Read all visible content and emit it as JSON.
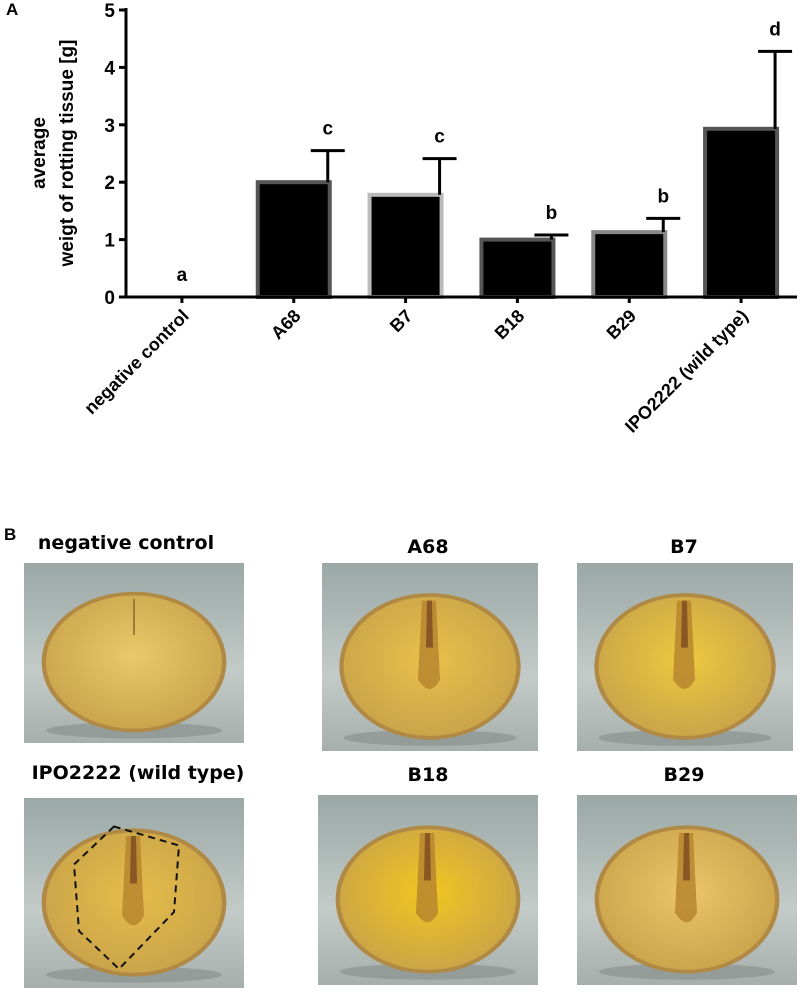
{
  "panel_a_letter": "A",
  "panel_b_letter": "B",
  "chart_data": {
    "type": "bar",
    "ylabel_line1": "average",
    "ylabel_line2": "weigt of rotting tissue [g]",
    "xlabel": "",
    "ylim": [
      0,
      5
    ],
    "yticks": [
      0,
      1,
      2,
      3,
      4,
      5
    ],
    "grid": false,
    "categories": [
      "negative control",
      "A68",
      "B7",
      "B18",
      "B29",
      "IPO2222 (wild type)"
    ],
    "values": [
      0,
      2.0,
      1.78,
      1.0,
      1.13,
      2.93
    ],
    "errors": [
      0,
      0.55,
      0.63,
      0.08,
      0.24,
      1.35
    ],
    "significance_letters": [
      "a",
      "c",
      "c",
      "b",
      "b",
      "d"
    ],
    "bar_color": "#000000",
    "bar_edge_colors": [
      "#000000",
      "#555555",
      "#bbbbbb",
      "#555555",
      "#888888",
      "#555555"
    ]
  },
  "photos": [
    {
      "title": "negative control",
      "flesh": "#e8c96a",
      "rot": false,
      "outline": false
    },
    {
      "title": "A68",
      "flesh": "#e9c04a",
      "rot": true,
      "outline": false
    },
    {
      "title": "B7",
      "flesh": "#ecc93e",
      "rot": true,
      "outline": false
    },
    {
      "title": "IPO2222 (wild type)",
      "flesh": "#e5bd4a",
      "rot": true,
      "outline": true
    },
    {
      "title": "B18",
      "flesh": "#f0c620",
      "rot": true,
      "outline": false
    },
    {
      "title": "B29",
      "flesh": "#ecc56a",
      "rot": true,
      "outline": false
    }
  ]
}
